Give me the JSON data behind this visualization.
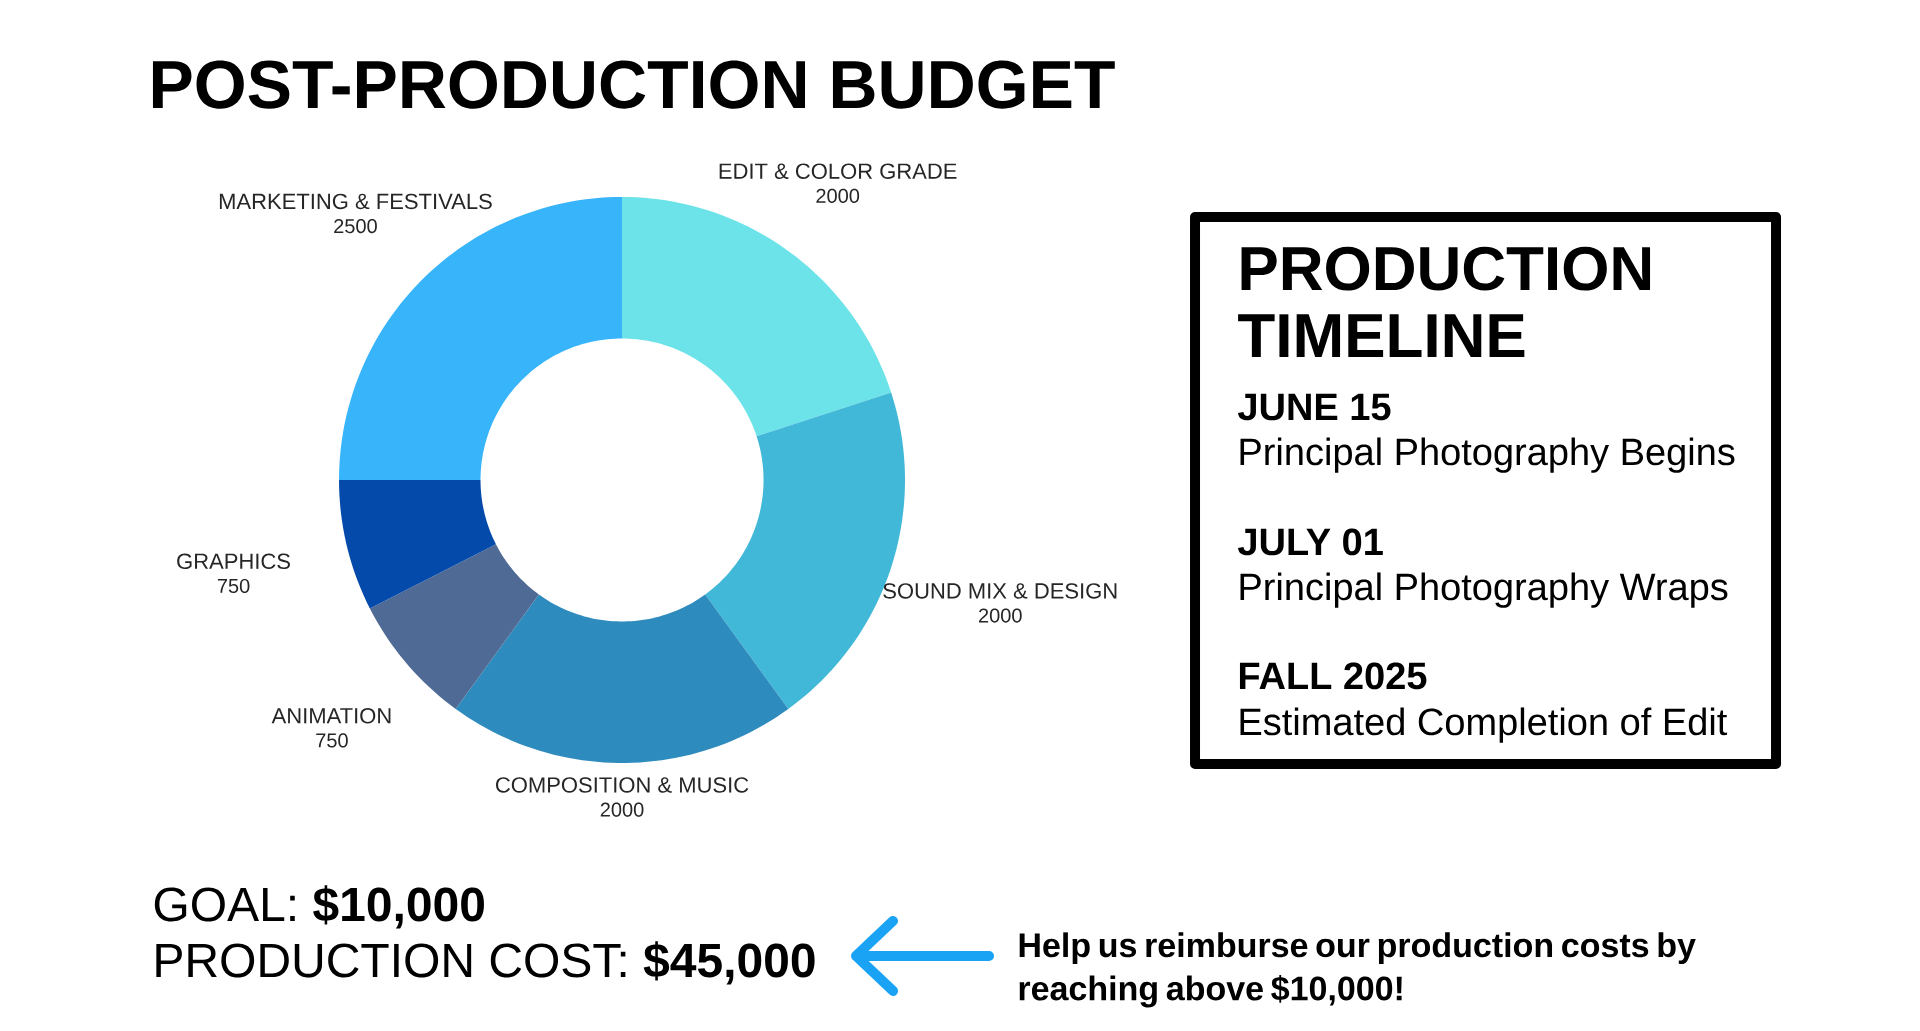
{
  "chart_data": [
    {
      "type": "donut",
      "title": "POST-PRODUCTION BUDGET",
      "categories": [
        "EDIT & COLOR GRADE",
        "SOUND MIX & DESIGN",
        "COMPOSITION & MUSIC",
        "ANIMATION",
        "GRAPHICS",
        "MARKETING & FESTIVALS"
      ],
      "values": [
        2000,
        2000,
        2000,
        750,
        750,
        2500
      ],
      "colors": [
        "#6be3e8",
        "#42b8d8",
        "#2e8bbd",
        "#4f6b95",
        "#044aab",
        "#38b4fa"
      ],
      "data_labels": true,
      "annotations": [
        "GOAL: **$10,000**",
        "PRODUCTION COST: **$45,000**",
        "Help us reimburse our production costs by reaching above $10,000!"
      ]
    },
    {
      "type": "other",
      "title": "PRODUCTION TIMELINE",
      "annotations": [
        "JUNE 15",
        "Principal Photography Begins",
        "JULY 01",
        "Principal Photography Wraps",
        "FALL 2025",
        "Estimated Completion of Edit"
      ]
    }
  ]
}
